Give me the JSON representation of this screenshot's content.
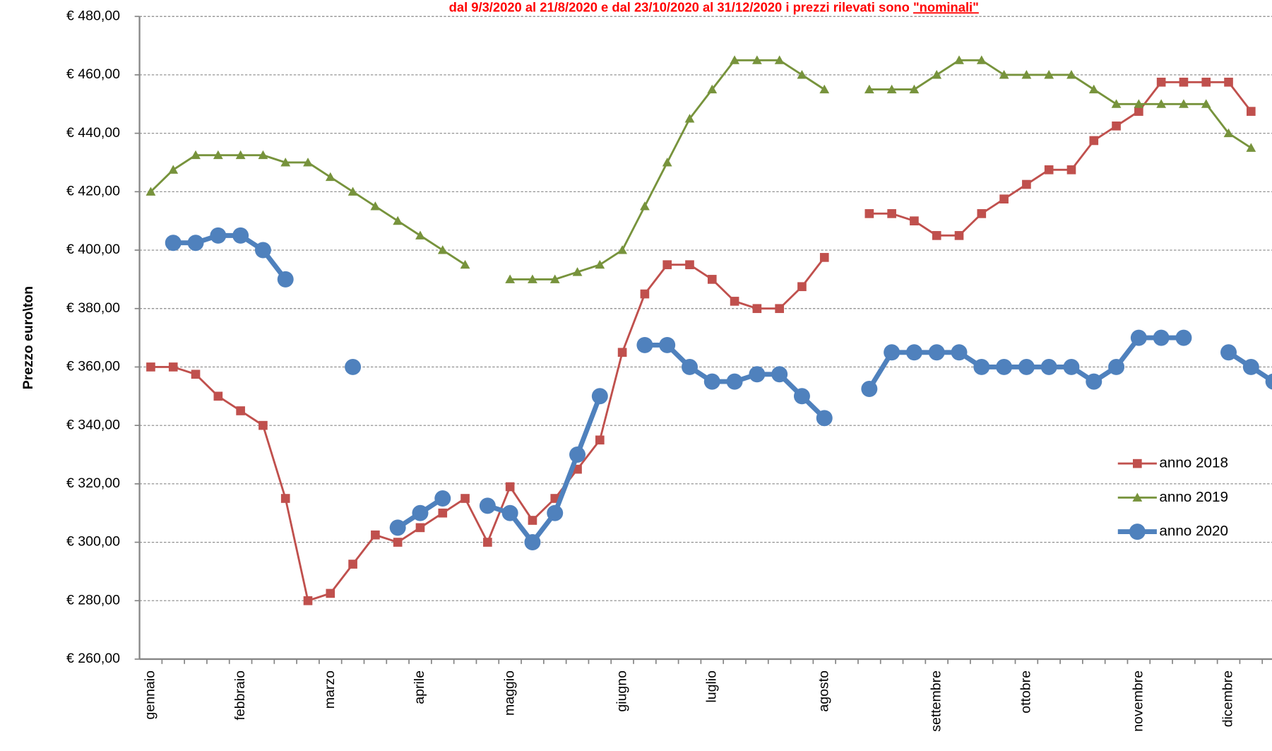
{
  "chart_data": {
    "type": "line",
    "title": "dal 9/3/2020 al 21/8/2020  e dal 23/10/2020 al 31/12/2020 i prezzi rilevati sono ",
    "title_emphasis": "\"nominali\"",
    "ylabel": "Prezzo euro\\ton",
    "categories": [
      "gennaio",
      null,
      null,
      null,
      "febbraio",
      null,
      null,
      null,
      "marzo",
      null,
      null,
      null,
      "aprile",
      null,
      null,
      null,
      "maggio",
      null,
      null,
      null,
      null,
      "giugno",
      null,
      null,
      null,
      "luglio",
      null,
      null,
      null,
      null,
      "agosto",
      null,
      null,
      null,
      null,
      "settembre",
      null,
      null,
      null,
      "ottobre",
      null,
      null,
      null,
      null,
      "novembre",
      null,
      null,
      null,
      "dicembre",
      null,
      null
    ],
    "series": [
      {
        "name": "anno 2018",
        "color": "#c0504d",
        "marker": "square",
        "values": [
          360,
          360,
          357.5,
          350,
          345,
          340,
          315,
          280,
          282.5,
          292.5,
          302.5,
          300,
          305,
          310,
          315,
          300,
          319,
          307.5,
          315,
          325,
          335,
          365,
          385,
          395,
          395,
          390,
          382.5,
          380,
          380,
          387.5,
          397.5,
          null,
          412.5,
          412.5,
          410,
          405,
          405,
          412.5,
          417.5,
          422.5,
          427.5,
          427.5,
          437.5,
          442.5,
          447.5,
          457.5,
          457.5,
          457.5,
          457.5,
          447.5,
          null
        ]
      },
      {
        "name": "anno 2019",
        "color": "#77933c",
        "marker": "triangle",
        "values": [
          420,
          427.5,
          432.5,
          432.5,
          432.5,
          432.5,
          430,
          430,
          425,
          420,
          415,
          410,
          405,
          400,
          395,
          null,
          390,
          390,
          390,
          392.5,
          395,
          400,
          415,
          430,
          445,
          455,
          465,
          465,
          465,
          460,
          455,
          null,
          455,
          455,
          455,
          460,
          465,
          465,
          460,
          460,
          460,
          460,
          455,
          450,
          450,
          450,
          450,
          450,
          440,
          435,
          null
        ]
      },
      {
        "name": "anno 2020",
        "color": "#4f81bd",
        "marker": "circle",
        "values": [
          null,
          402.5,
          402.5,
          405,
          405,
          400,
          390,
          null,
          null,
          360,
          null,
          305,
          310,
          315,
          null,
          312.5,
          310,
          300,
          310,
          330,
          350,
          null,
          367.5,
          367.5,
          360,
          355,
          355,
          357.5,
          357.5,
          350,
          342.5,
          null,
          352.5,
          365,
          365,
          365,
          365,
          360,
          360,
          360,
          360,
          360,
          355,
          360,
          370,
          370,
          370,
          null,
          365,
          360,
          355
        ]
      }
    ],
    "ylim": [
      260,
      480
    ],
    "yticks": [
      {
        "value": 260,
        "label": "€ 260,00"
      },
      {
        "value": 280,
        "label": "€ 280,00"
      },
      {
        "value": 300,
        "label": "€ 300,00"
      },
      {
        "value": 320,
        "label": "€ 320,00"
      },
      {
        "value": 340,
        "label": "€ 340,00"
      },
      {
        "value": 360,
        "label": "€ 360,00"
      },
      {
        "value": 380,
        "label": "€ 380,00"
      },
      {
        "value": 400,
        "label": "€ 400,00"
      },
      {
        "value": 420,
        "label": "€ 420,00"
      },
      {
        "value": 440,
        "label": "€ 440,00"
      },
      {
        "value": 460,
        "label": "€ 460,00"
      },
      {
        "value": 480,
        "label": "€ 480,00"
      }
    ],
    "grid": true,
    "legend": "right"
  }
}
